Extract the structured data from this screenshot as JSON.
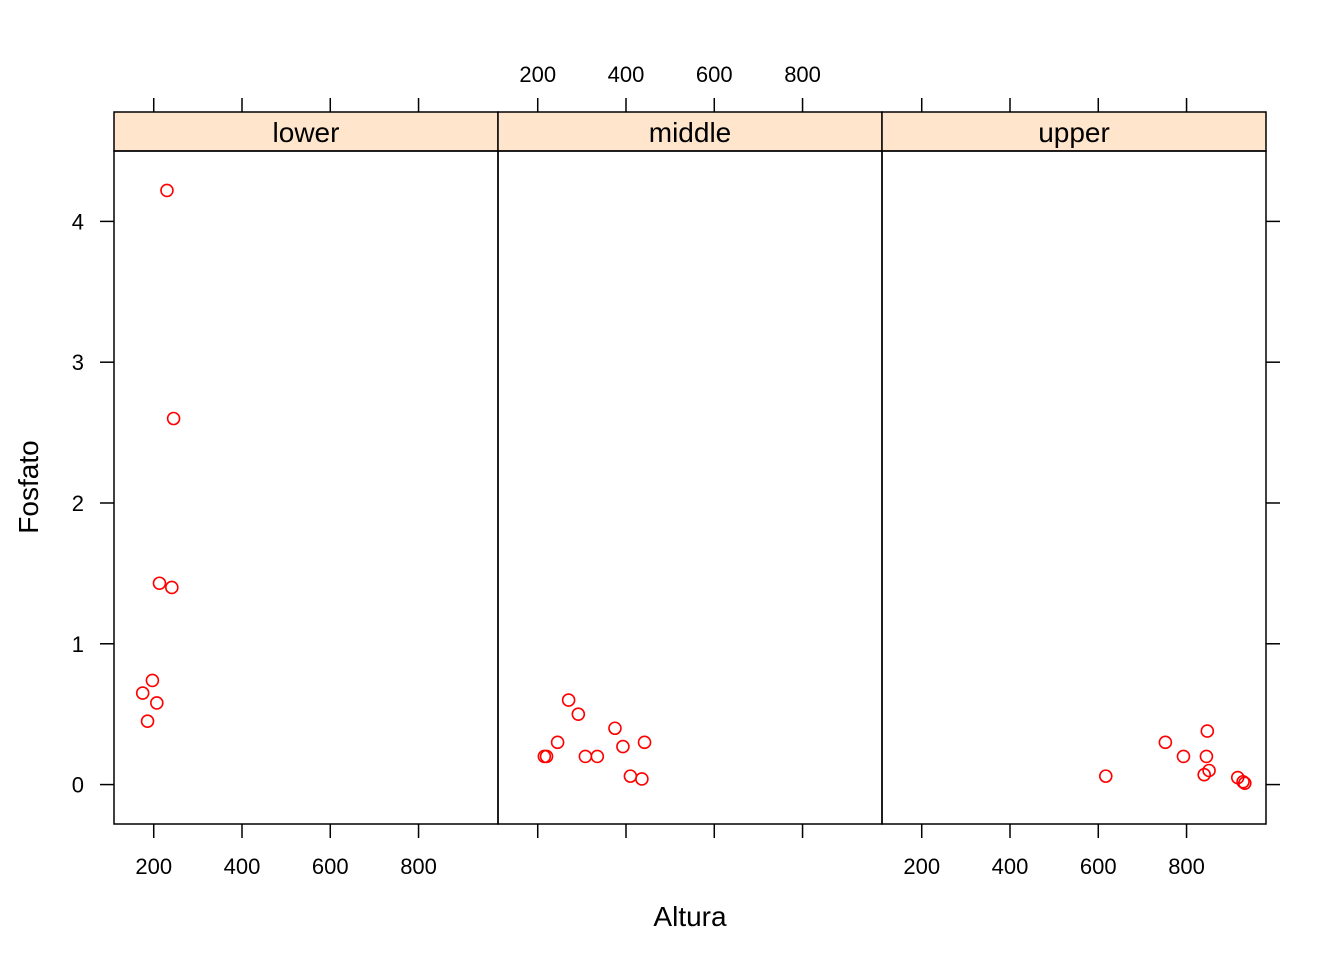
{
  "chart_data": {
    "type": "scatter",
    "xlabel": "Altura",
    "ylabel": "Fosfato",
    "xlim": [
      110,
      980
    ],
    "ylim": [
      -0.28,
      4.5
    ],
    "xticks": [
      200,
      400,
      600,
      800
    ],
    "yticks": [
      0,
      1,
      2,
      3,
      4
    ],
    "grid": false,
    "marker_color": "#ff0000",
    "strip_color": "#ffe5cc",
    "panels": [
      {
        "name": "lower",
        "points": [
          {
            "x": 230,
            "y": 4.22
          },
          {
            "x": 245,
            "y": 2.6
          },
          {
            "x": 213,
            "y": 1.43
          },
          {
            "x": 241,
            "y": 1.4
          },
          {
            "x": 197,
            "y": 0.74
          },
          {
            "x": 175,
            "y": 0.65
          },
          {
            "x": 207,
            "y": 0.58
          },
          {
            "x": 186,
            "y": 0.45
          }
        ]
      },
      {
        "name": "middle",
        "points": [
          {
            "x": 215,
            "y": 0.2
          },
          {
            "x": 220,
            "y": 0.2
          },
          {
            "x": 245,
            "y": 0.3
          },
          {
            "x": 270,
            "y": 0.6
          },
          {
            "x": 292,
            "y": 0.5
          },
          {
            "x": 308,
            "y": 0.2
          },
          {
            "x": 335,
            "y": 0.2
          },
          {
            "x": 375,
            "y": 0.4
          },
          {
            "x": 393,
            "y": 0.27
          },
          {
            "x": 410,
            "y": 0.06
          },
          {
            "x": 436,
            "y": 0.04
          },
          {
            "x": 442,
            "y": 0.3
          }
        ]
      },
      {
        "name": "upper",
        "points": [
          {
            "x": 617,
            "y": 0.06
          },
          {
            "x": 752,
            "y": 0.3
          },
          {
            "x": 793,
            "y": 0.2
          },
          {
            "x": 840,
            "y": 0.07
          },
          {
            "x": 845,
            "y": 0.2
          },
          {
            "x": 847,
            "y": 0.38
          },
          {
            "x": 851,
            "y": 0.1
          },
          {
            "x": 916,
            "y": 0.05
          },
          {
            "x": 928,
            "y": 0.02
          },
          {
            "x": 932,
            "y": 0.01
          }
        ]
      }
    ]
  }
}
